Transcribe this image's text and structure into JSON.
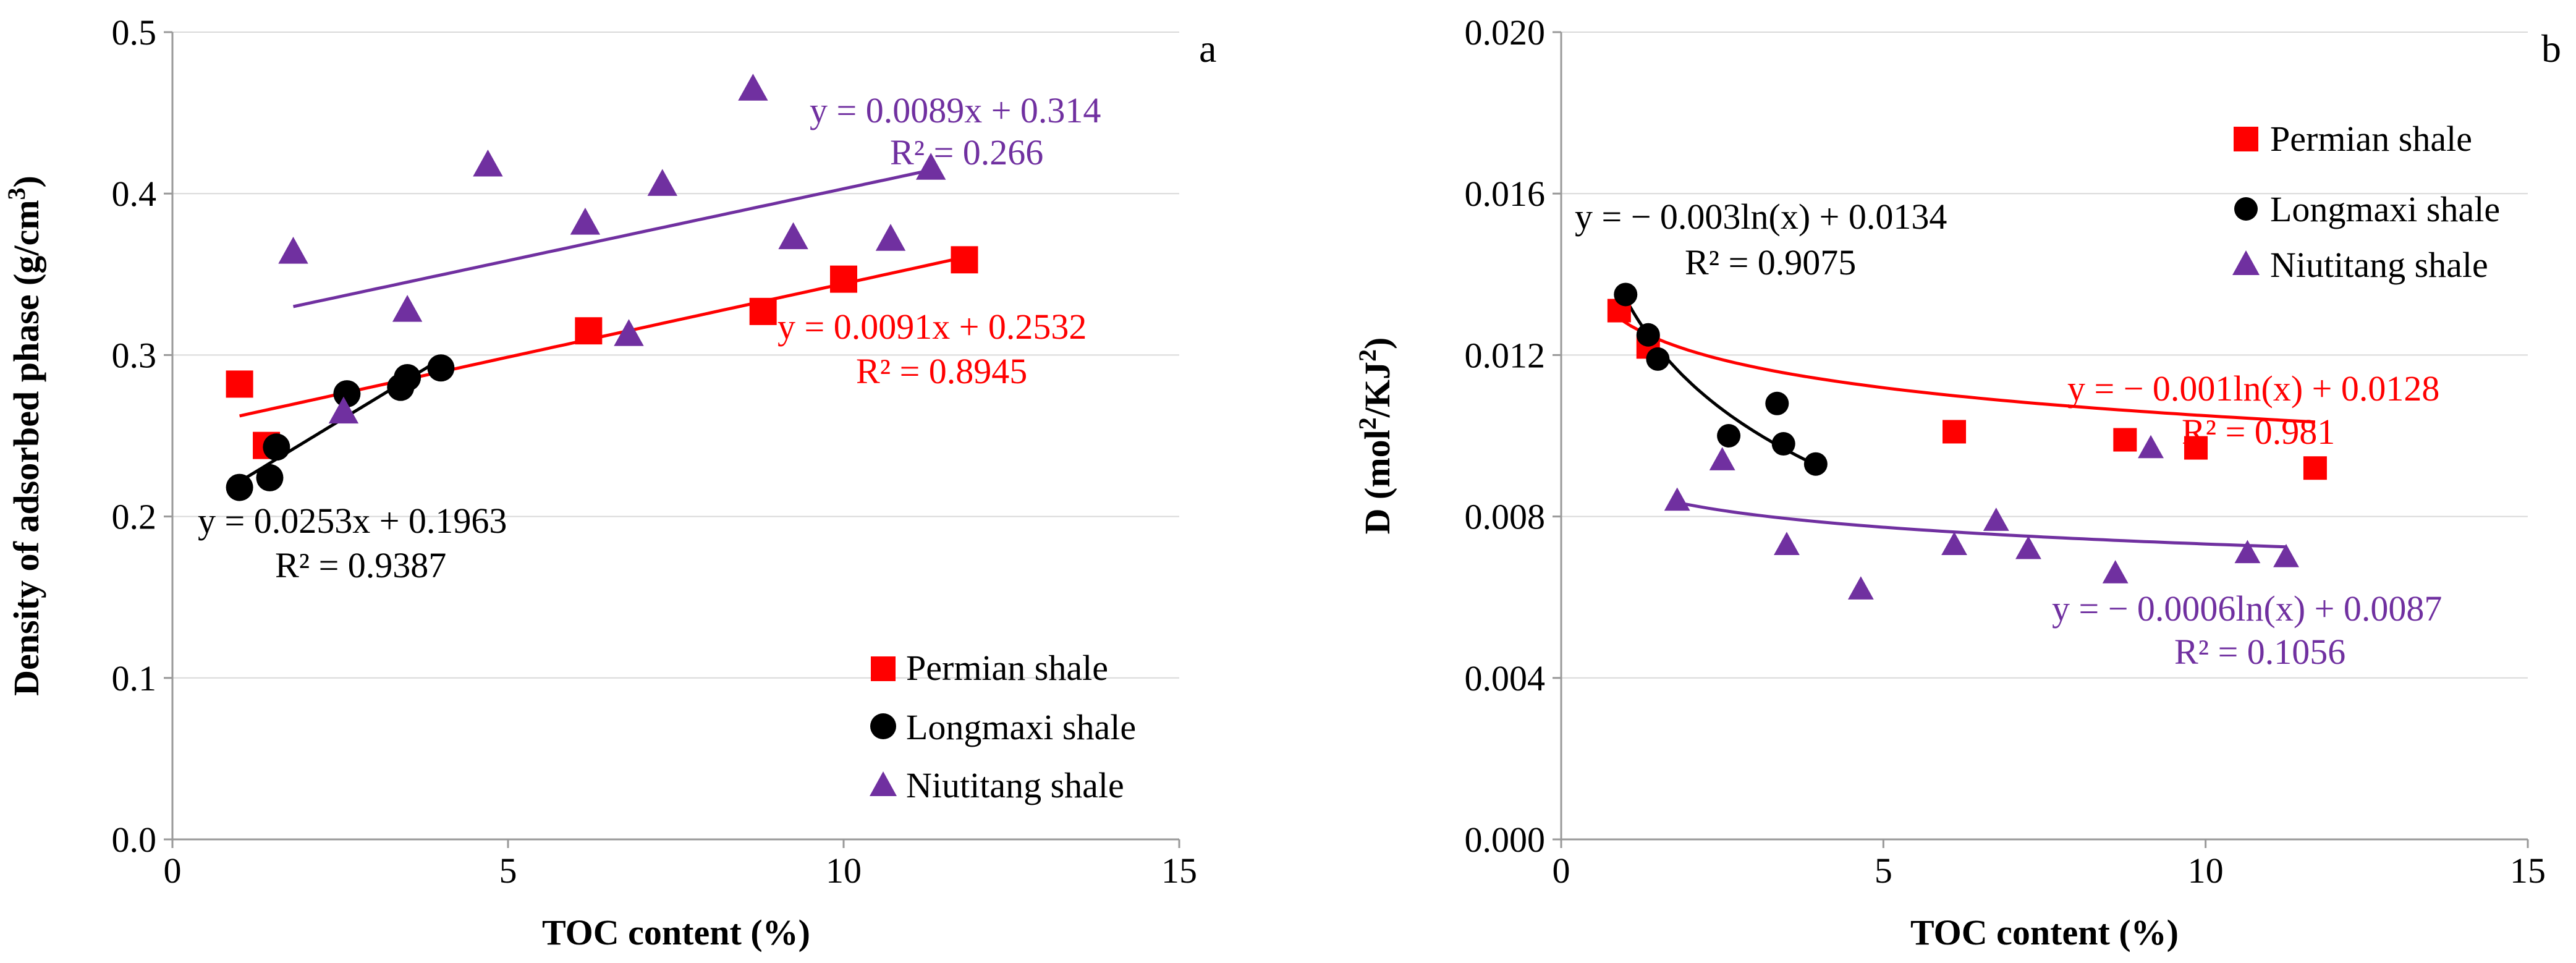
{
  "chart_data": [
    {
      "type": "scatter",
      "panel_label": "a",
      "xlabel": "TOC content (%)",
      "ylabel_main": "Density of adsorbed phase (g/cm",
      "ylabel_sup": "3",
      "ylabel_tail": ")",
      "xlim": [
        0,
        15
      ],
      "ylim": [
        0,
        0.5
      ],
      "xticks": [
        "0",
        "5",
        "10",
        "15"
      ],
      "xtick_values": [
        0,
        5,
        10,
        15
      ],
      "yticks": [
        "0.0",
        "0.1",
        "0.2",
        "0.3",
        "0.4",
        "0.5"
      ],
      "ytick_values": [
        0,
        0.1,
        0.2,
        0.3,
        0.4,
        0.5
      ],
      "legend_position": "bottom-right",
      "series": [
        {
          "name": "Permian shale",
          "marker": "square",
          "color": "#ff0000",
          "x": [
            1.0,
            1.4,
            6.2,
            8.8,
            10.0,
            11.8
          ],
          "y": [
            0.282,
            0.244,
            0.315,
            0.327,
            0.347,
            0.359
          ],
          "trend": {
            "kind": "linear",
            "slope": 0.0091,
            "intercept": 0.2532,
            "x_range": [
              1.0,
              11.8
            ]
          },
          "equation": "y = 0.0091x + 0.2532",
          "r2": "R² = 0.8945"
        },
        {
          "name": "Longmaxi shale",
          "marker": "circle",
          "color": "#000000",
          "x": [
            1.0,
            1.45,
            1.55,
            2.6,
            3.4,
            3.5,
            4.0
          ],
          "y": [
            0.218,
            0.224,
            0.243,
            0.276,
            0.28,
            0.286,
            0.292
          ],
          "trend": {
            "kind": "linear",
            "slope": 0.0253,
            "intercept": 0.1963,
            "x_range": [
              1.0,
              4.0
            ]
          },
          "equation": "y = 0.0253x + 0.1963",
          "r2": "R² = 0.9387"
        },
        {
          "name": "Niutitang shale",
          "marker": "triangle",
          "color": "#7030a0",
          "x": [
            1.8,
            2.55,
            3.5,
            4.7,
            6.15,
            6.8,
            7.3,
            8.65,
            9.25,
            10.7,
            11.3
          ],
          "y": [
            0.364,
            0.265,
            0.328,
            0.418,
            0.382,
            0.313,
            0.406,
            0.465,
            0.373,
            0.372,
            0.416
          ],
          "trend": {
            "kind": "linear",
            "slope": 0.0089,
            "intercept": 0.314,
            "x_range": [
              1.8,
              11.3
            ]
          },
          "equation": "y = 0.0089x + 0.314",
          "r2": "R² = 0.266"
        }
      ]
    },
    {
      "type": "scatter",
      "panel_label": "b",
      "xlabel": "TOC content (%)",
      "ylabel_main": "D (mol",
      "ylabel_sup": "2",
      "ylabel_mid": "/KJ",
      "ylabel_sup2": "2",
      "ylabel_tail": ")",
      "xlim": [
        0,
        15
      ],
      "ylim": [
        0,
        0.02
      ],
      "xticks": [
        "0",
        "5",
        "10",
        "15"
      ],
      "xtick_values": [
        0,
        5,
        10,
        15
      ],
      "yticks": [
        "0.000",
        "0.004",
        "0.008",
        "0.012",
        "0.016",
        "0.020"
      ],
      "ytick_values": [
        0,
        0.004,
        0.008,
        0.012,
        0.016,
        0.02
      ],
      "legend_position": "top-right",
      "series": [
        {
          "name": "Permian shale",
          "marker": "square",
          "color": "#ff0000",
          "x": [
            0.9,
            1.35,
            6.1,
            8.75,
            9.85,
            11.7
          ],
          "y": [
            0.0131,
            0.0122,
            0.0101,
            0.0099,
            0.0097,
            0.0092
          ],
          "trend": {
            "kind": "log",
            "a": -0.001,
            "b": 0.0128,
            "x_range": [
              0.9,
              11.7
            ]
          },
          "equation": "y = − 0.001ln(x) + 0.0128",
          "r2": "R² = 0.981"
        },
        {
          "name": "Longmaxi shale",
          "marker": "circle",
          "color": "#000000",
          "x": [
            1.0,
            1.35,
            1.5,
            2.6,
            3.35,
            3.45,
            3.95
          ],
          "y": [
            0.0135,
            0.0125,
            0.0119,
            0.01,
            0.0108,
            0.0098,
            0.0093
          ],
          "trend": {
            "kind": "log",
            "a": -0.003,
            "b": 0.0134,
            "x_range": [
              1.0,
              3.95
            ]
          },
          "equation": "y = − 0.003ln(x) + 0.0134",
          "r2": "R² = 0.9075"
        },
        {
          "name": "Niutitang shale",
          "marker": "triangle",
          "color": "#7030a0",
          "x": [
            1.8,
            2.5,
            3.5,
            4.65,
            6.1,
            6.75,
            7.25,
            8.6,
            9.15,
            10.65,
            11.25
          ],
          "y": [
            0.0084,
            0.0094,
            0.0073,
            0.0062,
            0.0073,
            0.0079,
            0.0072,
            0.0066,
            0.0097,
            0.0071,
            0.007
          ],
          "trend": {
            "kind": "log",
            "a": -0.0006,
            "b": 0.0087,
            "x_range": [
              1.8,
              11.25
            ]
          },
          "equation": "y = − 0.0006ln(x) + 0.0087",
          "r2": "R² = 0.1056"
        }
      ]
    }
  ]
}
